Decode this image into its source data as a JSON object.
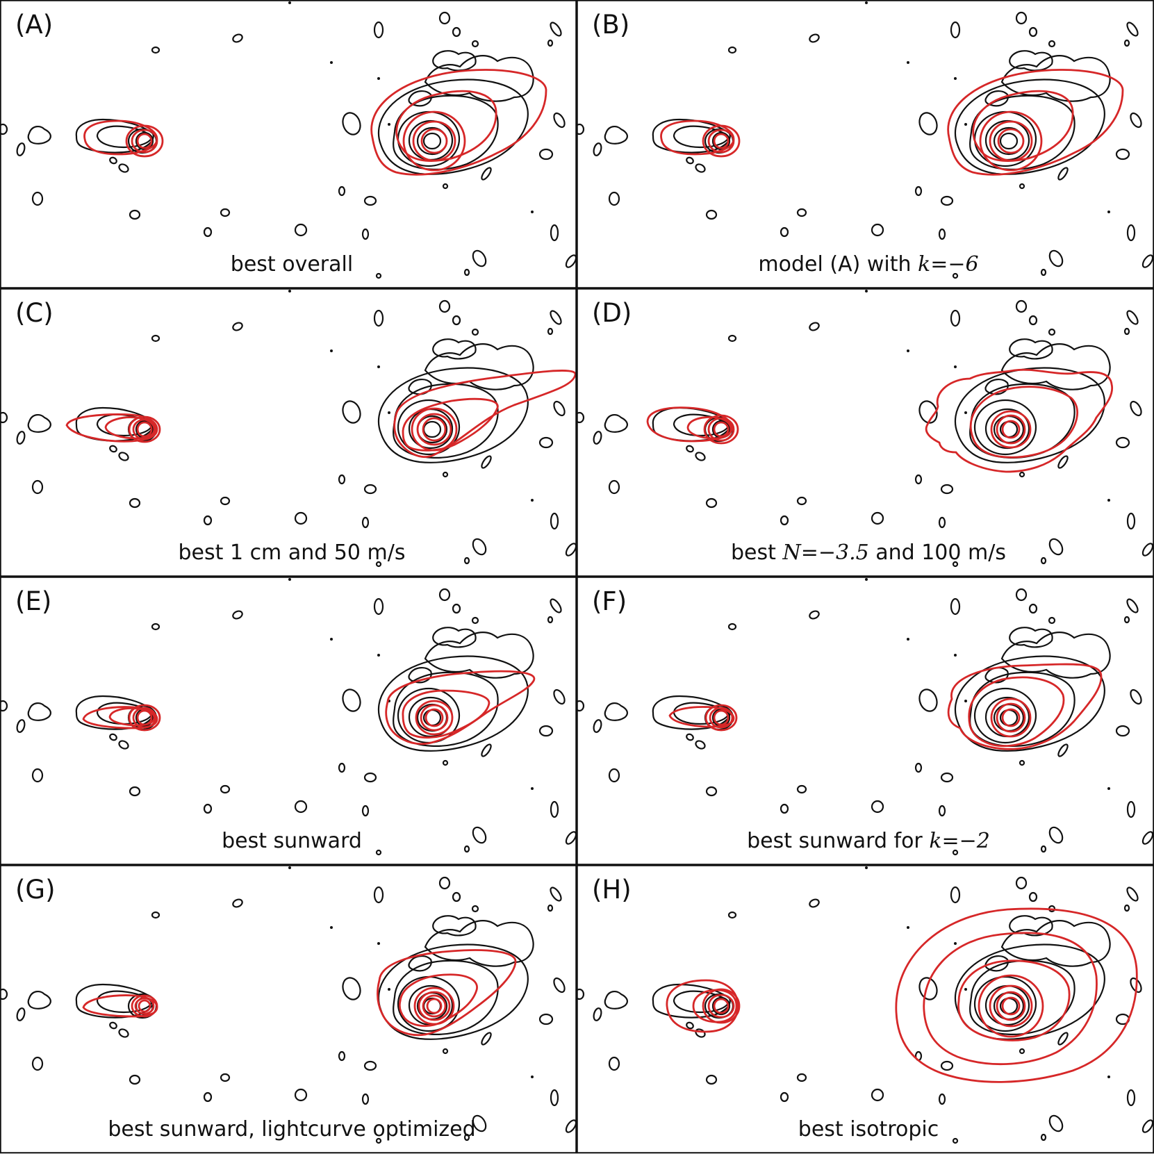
{
  "figure": {
    "colors": {
      "observed": "#111111",
      "model": "#d62728",
      "frame": "#111111",
      "background": "#ffffff"
    },
    "panels": [
      {
        "id": "A",
        "letter": "(A)",
        "caption": [
          {
            "text": "best overall",
            "math": false
          }
        ],
        "variant": "A"
      },
      {
        "id": "B",
        "letter": "(B)",
        "caption": [
          {
            "text": "model (A) with ",
            "math": false
          },
          {
            "text": "k=−6",
            "math": true
          }
        ],
        "variant": "B"
      },
      {
        "id": "C",
        "letter": "(C)",
        "caption": [
          {
            "text": "best 1 cm and 50 m/s",
            "math": false
          }
        ],
        "variant": "C"
      },
      {
        "id": "D",
        "letter": "(D)",
        "caption": [
          {
            "text": "best ",
            "math": false
          },
          {
            "text": "N=−3.5",
            "math": true
          },
          {
            "text": " and 100 m/s",
            "math": false
          }
        ],
        "variant": "D"
      },
      {
        "id": "E",
        "letter": "(E)",
        "caption": [
          {
            "text": "best sunward",
            "math": false
          }
        ],
        "variant": "E"
      },
      {
        "id": "F",
        "letter": "(F)",
        "caption": [
          {
            "text": "best sunward for ",
            "math": false
          },
          {
            "text": "k=−2",
            "math": true
          }
        ],
        "variant": "F"
      },
      {
        "id": "G",
        "letter": "(G)",
        "caption": [
          {
            "text": "best sunward, lightcurve optimized",
            "math": false
          }
        ],
        "variant": "G"
      },
      {
        "id": "H",
        "letter": "(H)",
        "caption": [
          {
            "text": "best isotropic",
            "math": false
          }
        ],
        "variant": "H"
      }
    ]
  }
}
